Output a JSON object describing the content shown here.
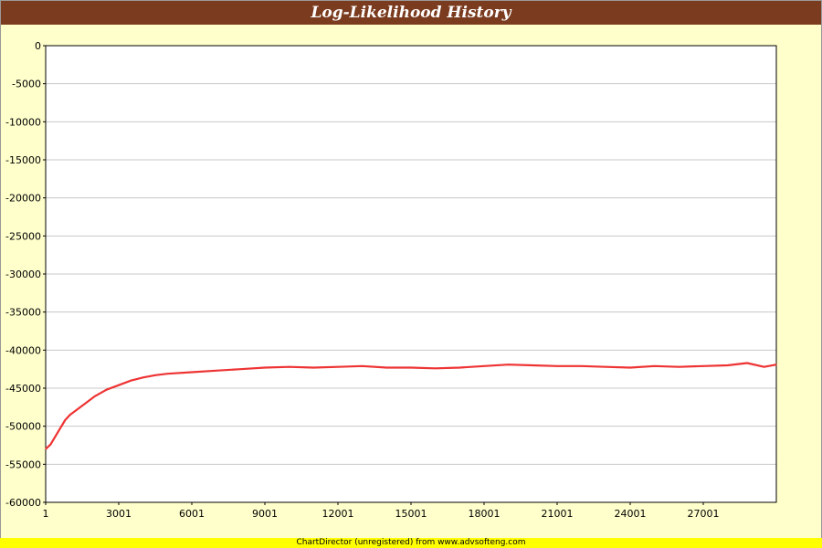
{
  "chart_data": {
    "type": "line",
    "title": "Log-Likelihood History",
    "xlabel": "",
    "ylabel": "",
    "x_ticks": [
      "1",
      "3001",
      "6001",
      "9001",
      "12001",
      "15001",
      "18001",
      "21001",
      "24001",
      "27001"
    ],
    "y_ticks": [
      "0",
      "-5000",
      "-10000",
      "-15000",
      "-20000",
      "-25000",
      "-30000",
      "-35000",
      "-40000",
      "-45000",
      "-50000",
      "-55000",
      "-60000"
    ],
    "xlim": [
      1,
      30001
    ],
    "ylim": [
      -60000,
      0
    ],
    "grid": true,
    "series": [
      {
        "color": "#ee3333",
        "x": [
          1,
          200,
          500,
          800,
          1000,
          1500,
          2000,
          2500,
          3000,
          3500,
          4000,
          4500,
          5000,
          6000,
          7000,
          8000,
          9000,
          10000,
          11000,
          12000,
          13000,
          14000,
          15000,
          16000,
          17000,
          18000,
          19000,
          20000,
          21000,
          22000,
          23000,
          24000,
          25000,
          26000,
          27000,
          28000,
          28800,
          29500,
          30001
        ],
        "values": [
          -53000,
          -52400,
          -50800,
          -49200,
          -48500,
          -47300,
          -46100,
          -45200,
          -44600,
          -44000,
          -43600,
          -43300,
          -43100,
          -42900,
          -42700,
          -42500,
          -42300,
          -42200,
          -42300,
          -42200,
          -42100,
          -42300,
          -42300,
          -42400,
          -42300,
          -42100,
          -41900,
          -42000,
          -42100,
          -42100,
          -42200,
          -42300,
          -42100,
          -42200,
          -42100,
          -42000,
          -41700,
          -42200,
          -41900
        ]
      }
    ]
  },
  "footer": {
    "text": "ChartDirector (unregistered) from www.advsofteng.com"
  }
}
